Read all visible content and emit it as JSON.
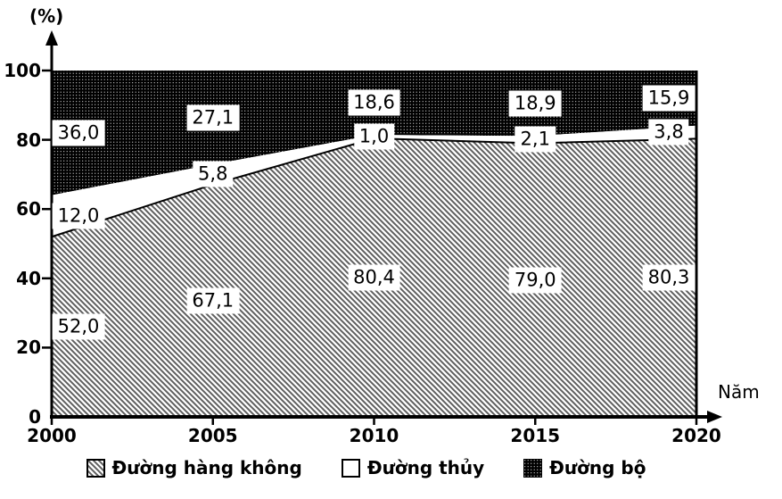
{
  "chart_data": {
    "type": "area",
    "stacked": true,
    "unit": "percent",
    "title": "",
    "ylabel": "(%)",
    "xlabel": "Năm",
    "x": [
      2000,
      2005,
      2010,
      2015,
      2020
    ],
    "x_labels": [
      "2000",
      "2005",
      "2010",
      "2015",
      "2020"
    ],
    "ylim": [
      0,
      100
    ],
    "yticks": [
      0,
      20,
      40,
      60,
      80,
      100
    ],
    "ytick_labels": [
      "0",
      "20",
      "40",
      "60",
      "80",
      "100"
    ],
    "grid": false,
    "legend_position": "bottom",
    "series": [
      {
        "name": "Đường hàng không",
        "slug": "duong-hang-khong",
        "fill": "diagonal-hatch",
        "values": [
          52.0,
          67.1,
          80.4,
          79.0,
          80.3
        ],
        "display_labels": [
          "52,0",
          "67,1",
          "80,4",
          "79,0",
          "80,3"
        ]
      },
      {
        "name": "Đường thủy",
        "slug": "duong-thuy",
        "fill": "white",
        "values": [
          12.0,
          5.8,
          1.0,
          2.1,
          3.8
        ],
        "display_labels": [
          "12,0",
          "5,8",
          "1,0",
          "2,1",
          "3,8"
        ]
      },
      {
        "name": "Đường bộ",
        "slug": "duong-bo",
        "fill": "black-dots",
        "values": [
          36.0,
          27.1,
          18.6,
          18.9,
          15.9
        ],
        "display_labels": [
          "36,0",
          "27,1",
          "18,6",
          "18,9",
          "15,9"
        ]
      }
    ],
    "legend": [
      "Đường hàng không",
      "Đường thủy",
      "Đường bộ"
    ]
  },
  "colors": {
    "axis": "#000000",
    "hatch_line": "#5f5f5f",
    "area_black": "#000000",
    "label_background": "#ffffff",
    "text": "#000000"
  }
}
